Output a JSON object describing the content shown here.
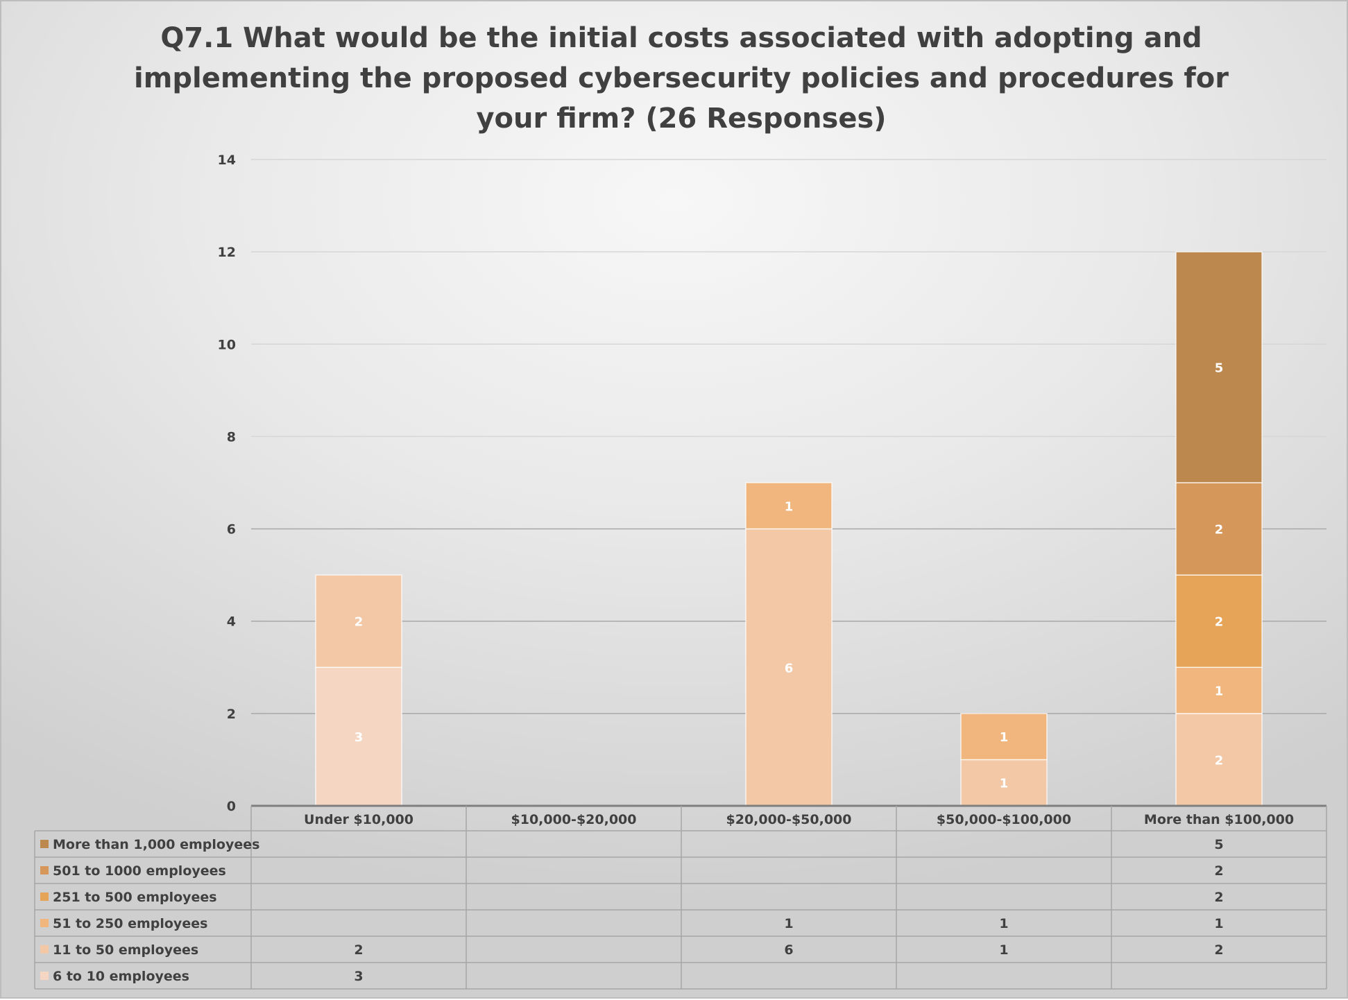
{
  "chart_data": {
    "type": "bar",
    "stacked": true,
    "title": "Q7.1 What would be the initial costs associated with adopting and implementing the proposed cybersecurity policies and procedures for your firm? (26 Responses)",
    "categories": [
      "Under $10,000",
      "$10,000-$20,000",
      "$20,000-$50,000",
      "$50,000-$100,000",
      "More than $100,000"
    ],
    "ylim": [
      0,
      14
    ],
    "yticks": [
      0,
      2,
      4,
      6,
      8,
      10,
      12,
      14
    ],
    "grid": true,
    "legend": "data-table-left",
    "series": [
      {
        "name": "6 to 10 employees",
        "color": "#f5d6c2",
        "values": [
          3,
          null,
          null,
          null,
          null
        ]
      },
      {
        "name": "11 to 50 employees",
        "color": "#f3c8a6",
        "values": [
          2,
          null,
          6,
          1,
          2
        ]
      },
      {
        "name": "51 to 250 employees",
        "color": "#f0b67e",
        "values": [
          null,
          null,
          1,
          1,
          1
        ]
      },
      {
        "name": "251 to 500 employees",
        "color": "#e5a457",
        "values": [
          null,
          null,
          null,
          null,
          2
        ]
      },
      {
        "name": "501 to 1000 employees",
        "color": "#d5975a",
        "values": [
          null,
          null,
          null,
          null,
          2
        ]
      },
      {
        "name": "More than 1,000 employees",
        "color": "#bc884d",
        "values": [
          null,
          null,
          null,
          null,
          5
        ]
      }
    ]
  }
}
